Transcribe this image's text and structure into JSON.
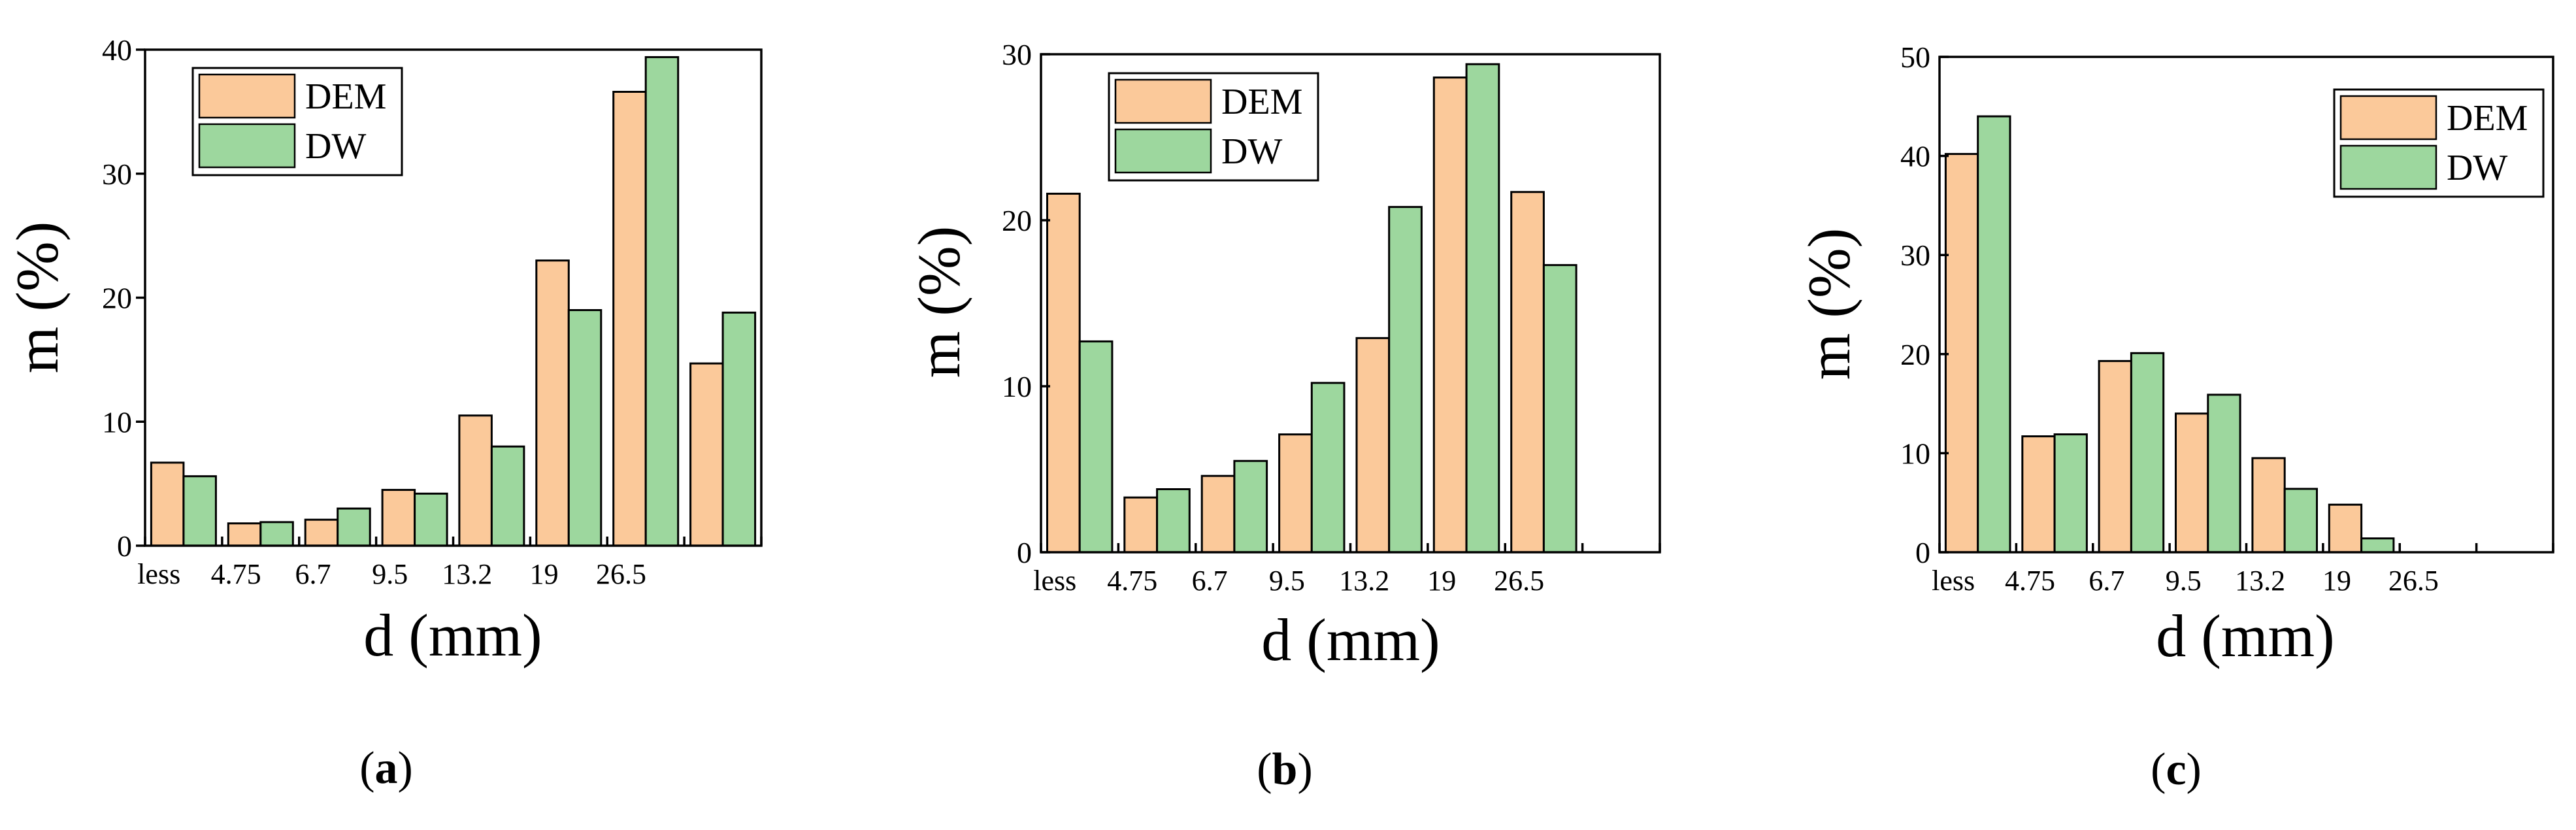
{
  "colors": {
    "DEM": "#fbc99a",
    "DW": "#9dd79e",
    "outline": "#000000"
  },
  "chart_data": [
    {
      "type": "bar",
      "panel_label": "a",
      "xlabel": "d (mm)",
      "ylabel": "m (%)",
      "ylim": [
        0,
        40
      ],
      "yticks": [
        0,
        10,
        20,
        30,
        40
      ],
      "categories": [
        "less",
        "4.75",
        "6.7",
        "9.5",
        "13.2",
        "19",
        "26.5",
        ""
      ],
      "legend_position": "top-left",
      "series": [
        {
          "name": "DEM",
          "values": [
            6.7,
            1.8,
            2.1,
            4.5,
            10.5,
            23.0,
            36.6,
            14.7
          ]
        },
        {
          "name": "DW",
          "values": [
            5.6,
            1.9,
            3.0,
            4.2,
            8.0,
            19.0,
            39.4,
            18.8
          ]
        }
      ]
    },
    {
      "type": "bar",
      "panel_label": "b",
      "xlabel": "d (mm)",
      "ylabel": "m (%)",
      "ylim": [
        0,
        30
      ],
      "yticks": [
        0,
        10,
        20,
        30
      ],
      "categories": [
        "less",
        "4.75",
        "6.7",
        "9.5",
        "13.2",
        "19",
        "26.5",
        ""
      ],
      "legend_position": "top-left",
      "series": [
        {
          "name": "DEM",
          "values": [
            21.6,
            3.3,
            4.6,
            7.1,
            12.9,
            28.6,
            21.7,
            0
          ]
        },
        {
          "name": "DW",
          "values": [
            12.7,
            3.8,
            5.5,
            10.2,
            20.8,
            29.4,
            17.3,
            0
          ]
        }
      ]
    },
    {
      "type": "bar",
      "panel_label": "c",
      "xlabel": "d (mm)",
      "ylabel": "m (%)",
      "ylim": [
        0,
        50
      ],
      "yticks": [
        0,
        10,
        20,
        30,
        40,
        50
      ],
      "categories": [
        "less",
        "4.75",
        "6.7",
        "9.5",
        "13.2",
        "19",
        "26.5",
        ""
      ],
      "legend_position": "top-right",
      "series": [
        {
          "name": "DEM",
          "values": [
            40.2,
            11.7,
            19.3,
            14.0,
            9.5,
            4.8,
            0,
            0
          ]
        },
        {
          "name": "DW",
          "values": [
            44.0,
            11.9,
            20.1,
            15.9,
            6.4,
            1.4,
            0,
            0
          ]
        }
      ]
    }
  ]
}
